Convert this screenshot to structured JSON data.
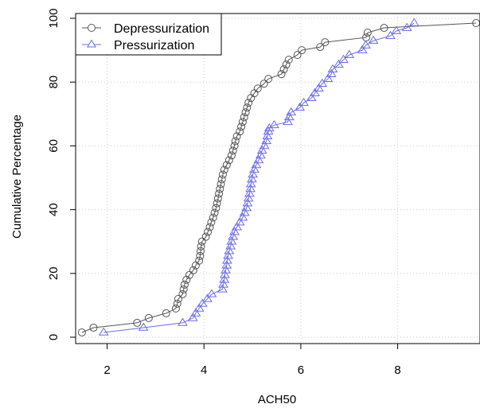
{
  "chart_data": {
    "type": "line",
    "title": "",
    "xlabel": "ACH50",
    "ylabel": "Cumulative Percentage",
    "xlim": [
      1.35,
      9.7
    ],
    "ylim": [
      -2.0,
      101.5
    ],
    "x_ticks": [
      2,
      4,
      6,
      8
    ],
    "y_ticks": [
      0,
      20,
      40,
      60,
      80,
      100
    ],
    "grid": true,
    "legend": "top-left",
    "series": [
      {
        "name": "Depressurization",
        "color": "#555555",
        "marker": "circle",
        "points": [
          [
            1.48,
            1.5
          ],
          [
            1.72,
            3.0
          ],
          [
            2.62,
            4.5
          ],
          [
            2.86,
            6.0
          ],
          [
            3.22,
            7.5
          ],
          [
            3.42,
            9.0
          ],
          [
            3.45,
            10.5
          ],
          [
            3.47,
            12.0
          ],
          [
            3.56,
            13.5
          ],
          [
            3.58,
            15.0
          ],
          [
            3.6,
            16.5
          ],
          [
            3.64,
            18.0
          ],
          [
            3.7,
            19.5
          ],
          [
            3.78,
            21.0
          ],
          [
            3.83,
            22.5
          ],
          [
            3.9,
            24.0
          ],
          [
            3.92,
            25.5
          ],
          [
            3.93,
            27.0
          ],
          [
            3.94,
            28.5
          ],
          [
            3.96,
            30.0
          ],
          [
            4.04,
            31.5
          ],
          [
            4.08,
            33.0
          ],
          [
            4.12,
            34.5
          ],
          [
            4.15,
            36.0
          ],
          [
            4.19,
            37.5
          ],
          [
            4.22,
            39.0
          ],
          [
            4.25,
            40.5
          ],
          [
            4.27,
            42.0
          ],
          [
            4.29,
            43.5
          ],
          [
            4.31,
            45.0
          ],
          [
            4.33,
            46.5
          ],
          [
            4.35,
            48.0
          ],
          [
            4.37,
            49.5
          ],
          [
            4.39,
            51.0
          ],
          [
            4.42,
            52.5
          ],
          [
            4.47,
            54.0
          ],
          [
            4.52,
            55.5
          ],
          [
            4.57,
            57.0
          ],
          [
            4.6,
            58.5
          ],
          [
            4.63,
            60.0
          ],
          [
            4.65,
            61.5
          ],
          [
            4.68,
            63.0
          ],
          [
            4.74,
            64.5
          ],
          [
            4.77,
            66.0
          ],
          [
            4.8,
            67.5
          ],
          [
            4.83,
            69.0
          ],
          [
            4.86,
            70.5
          ],
          [
            4.89,
            72.0
          ],
          [
            4.92,
            73.5
          ],
          [
            4.97,
            75.0
          ],
          [
            5.04,
            76.5
          ],
          [
            5.11,
            78.0
          ],
          [
            5.24,
            79.5
          ],
          [
            5.33,
            81.0
          ],
          [
            5.6,
            82.5
          ],
          [
            5.65,
            84.0
          ],
          [
            5.7,
            85.5
          ],
          [
            5.75,
            87.0
          ],
          [
            5.93,
            88.5
          ],
          [
            6.02,
            90.0
          ],
          [
            6.4,
            91.0
          ],
          [
            6.5,
            92.5
          ],
          [
            7.35,
            94.0
          ],
          [
            7.38,
            95.5
          ],
          [
            7.72,
            97.0
          ],
          [
            9.62,
            98.5
          ]
        ]
      },
      {
        "name": "Pressurization",
        "color": "#6a6aee",
        "marker": "triangle",
        "points": [
          [
            1.93,
            1.5
          ],
          [
            2.75,
            3.0
          ],
          [
            3.56,
            4.5
          ],
          [
            3.77,
            6.0
          ],
          [
            3.83,
            7.5
          ],
          [
            3.9,
            9.0
          ],
          [
            3.97,
            10.5
          ],
          [
            4.07,
            12.0
          ],
          [
            4.16,
            13.5
          ],
          [
            4.38,
            15.0
          ],
          [
            4.4,
            16.5
          ],
          [
            4.42,
            18.0
          ],
          [
            4.43,
            19.5
          ],
          [
            4.45,
            21.0
          ],
          [
            4.47,
            22.5
          ],
          [
            4.48,
            24.0
          ],
          [
            4.5,
            25.5
          ],
          [
            4.52,
            27.0
          ],
          [
            4.55,
            28.5
          ],
          [
            4.57,
            30.0
          ],
          [
            4.6,
            31.5
          ],
          [
            4.63,
            33.0
          ],
          [
            4.68,
            34.5
          ],
          [
            4.74,
            36.0
          ],
          [
            4.8,
            37.5
          ],
          [
            4.84,
            39.0
          ],
          [
            4.88,
            40.5
          ],
          [
            4.9,
            42.0
          ],
          [
            4.92,
            43.5
          ],
          [
            4.94,
            45.0
          ],
          [
            4.96,
            46.5
          ],
          [
            4.97,
            48.0
          ],
          [
            4.99,
            49.5
          ],
          [
            5.01,
            51.0
          ],
          [
            5.04,
            52.5
          ],
          [
            5.08,
            54.0
          ],
          [
            5.13,
            55.5
          ],
          [
            5.17,
            57.0
          ],
          [
            5.2,
            58.5
          ],
          [
            5.25,
            60.0
          ],
          [
            5.29,
            61.5
          ],
          [
            5.31,
            63.0
          ],
          [
            5.33,
            64.5
          ],
          [
            5.35,
            65.5
          ],
          [
            5.45,
            66.5
          ],
          [
            5.73,
            67.5
          ],
          [
            5.76,
            69.0
          ],
          [
            5.8,
            70.5
          ],
          [
            5.98,
            72.0
          ],
          [
            6.06,
            73.5
          ],
          [
            6.22,
            75.0
          ],
          [
            6.29,
            76.5
          ],
          [
            6.37,
            78.0
          ],
          [
            6.44,
            79.5
          ],
          [
            6.56,
            81.0
          ],
          [
            6.63,
            82.5
          ],
          [
            6.66,
            84.0
          ],
          [
            6.78,
            85.5
          ],
          [
            6.88,
            87.0
          ],
          [
            7.0,
            88.5
          ],
          [
            7.27,
            90.0
          ],
          [
            7.34,
            91.5
          ],
          [
            7.5,
            93.0
          ],
          [
            7.85,
            94.5
          ],
          [
            7.97,
            96.0
          ],
          [
            8.19,
            97.0
          ],
          [
            8.34,
            98.5
          ]
        ]
      }
    ]
  }
}
